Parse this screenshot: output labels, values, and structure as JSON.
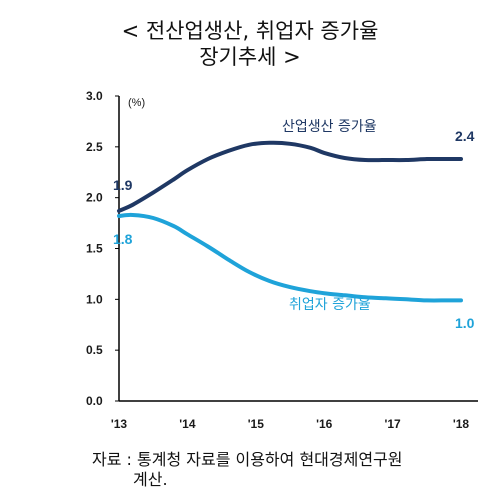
{
  "title": {
    "line1": "< 전산업생산, 취업자 증가율",
    "line2": "장기추세 >"
  },
  "source": {
    "line1": "자료 : 통계청 자료를 이용하여 현대경제연구원",
    "line2": "계산."
  },
  "chart_data": {
    "type": "line",
    "unit": "(%)",
    "ylim": [
      0.0,
      3.0
    ],
    "yticks": [
      "0.0",
      "0.5",
      "1.0",
      "1.5",
      "2.0",
      "2.5",
      "3.0"
    ],
    "xticks": [
      "'13",
      "'14",
      "'15",
      "'16",
      "'17",
      "'18"
    ],
    "grid": false,
    "series": [
      {
        "name": "산업생산 증가율",
        "color": "#1f3864",
        "x": [
          2013.0,
          2013.2,
          2013.5,
          2013.8,
          2014.0,
          2014.3,
          2014.6,
          2014.9,
          2015.2,
          2015.5,
          2015.8,
          2016.0,
          2016.3,
          2016.6,
          2016.9,
          2017.2,
          2017.5,
          2017.8,
          2018.0
        ],
        "values": [
          1.87,
          1.93,
          2.05,
          2.18,
          2.27,
          2.38,
          2.46,
          2.52,
          2.54,
          2.53,
          2.49,
          2.44,
          2.39,
          2.37,
          2.37,
          2.37,
          2.38,
          2.38,
          2.38
        ],
        "start_label": "1.9",
        "end_label": "2.4"
      },
      {
        "name": "취업자 증가율",
        "color": "#1fa3d9",
        "x": [
          2013.0,
          2013.2,
          2013.5,
          2013.8,
          2014.0,
          2014.3,
          2014.6,
          2014.9,
          2015.2,
          2015.5,
          2015.8,
          2016.0,
          2016.3,
          2016.6,
          2016.9,
          2017.2,
          2017.5,
          2017.8,
          2018.0
        ],
        "values": [
          1.82,
          1.83,
          1.8,
          1.72,
          1.64,
          1.52,
          1.39,
          1.27,
          1.18,
          1.12,
          1.08,
          1.06,
          1.04,
          1.02,
          1.01,
          1.0,
          0.99,
          0.99,
          0.99
        ],
        "start_label": "1.8",
        "end_label": "1.0"
      }
    ]
  }
}
